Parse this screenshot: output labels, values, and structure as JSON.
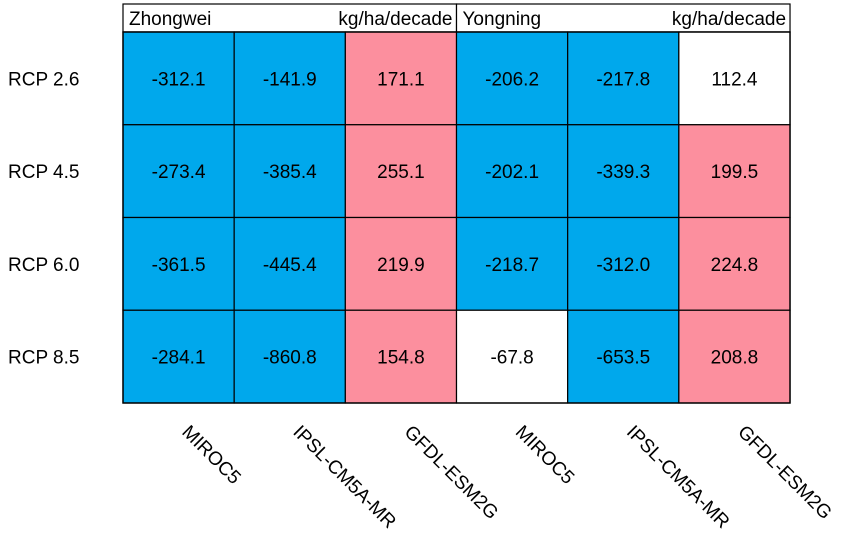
{
  "chart_data": {
    "type": "heatmap",
    "panels": [
      {
        "site": "Zhongwei",
        "unit": "kg/ha/decade"
      },
      {
        "site": "Yongning",
        "unit": "kg/ha/decade"
      }
    ],
    "rows": [
      "RCP 2.6",
      "RCP 4.5",
      "RCP 6.0",
      "RCP 8.5"
    ],
    "columns": [
      "MIROC5",
      "IPSL-CM5A-MR",
      "GFDL-ESM2G",
      "MIROC5",
      "IPSL-CM5A-MR",
      "GFDL-ESM2G"
    ],
    "values": [
      [
        "-312.1",
        "-141.9",
        "171.1",
        "-206.2",
        "-217.8",
        "112.4"
      ],
      [
        "-273.4",
        "-385.4",
        "255.1",
        "-202.1",
        "-339.3",
        "199.5"
      ],
      [
        "-361.5",
        "-445.4",
        "219.9",
        "-218.7",
        "-312.0",
        "224.8"
      ],
      [
        "-284.1",
        "-860.8",
        "154.8",
        "-67.8",
        "-653.5",
        "208.8"
      ]
    ],
    "cell_colors": [
      [
        "blue",
        "blue",
        "pink",
        "blue",
        "blue",
        "white"
      ],
      [
        "blue",
        "blue",
        "pink",
        "blue",
        "blue",
        "pink"
      ],
      [
        "blue",
        "blue",
        "pink",
        "blue",
        "blue",
        "pink"
      ],
      [
        "blue",
        "blue",
        "pink",
        "white",
        "blue",
        "pink"
      ]
    ]
  },
  "colors": {
    "blue": "#00a8ec",
    "pink": "#fc8f9e",
    "white": "#ffffff",
    "border": "#000000"
  }
}
